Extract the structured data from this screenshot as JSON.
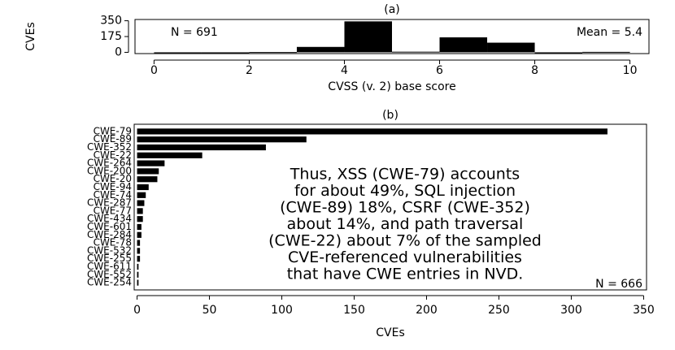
{
  "chart_data": [
    {
      "type": "histogram",
      "title": "(a)",
      "x_label": "CVSS (v. 2) base score",
      "y_label": "CVEs",
      "bins": [
        0,
        1,
        2,
        3,
        4,
        5,
        6,
        7,
        8,
        9,
        10
      ],
      "values": [
        0,
        0,
        3,
        60,
        343,
        7,
        166,
        107,
        0,
        5
      ],
      "color": "#000000",
      "xlim": [
        -0.4,
        10.4
      ],
      "xticks": [
        0,
        2,
        4,
        6,
        8,
        10
      ],
      "ylim": [
        -14,
        364
      ],
      "yticks": [
        0,
        175,
        350
      ],
      "annotations": [
        "N = 691",
        "Mean = 5.4"
      ]
    },
    {
      "type": "bar",
      "orientation": "horizontal",
      "title": "(b)",
      "x_label": "CVEs",
      "categories": [
        "CWE-79",
        "CWE-89",
        "CWE-352",
        "CWE-22",
        "CWE-264",
        "CWE-200",
        "CWE-20",
        "CWE-94",
        "CWE-74",
        "CWE-287",
        "CWE-77",
        "CWE-434",
        "CWE-601",
        "CWE-284",
        "CWE-78",
        "CWE-532",
        "CWE-255",
        "CWE-611",
        "CWE-552",
        "CWE-254"
      ],
      "values": [
        325,
        117,
        89,
        45,
        19,
        15,
        14,
        8,
        6,
        5,
        4,
        4,
        3,
        3,
        2,
        2,
        2,
        1,
        1,
        1
      ],
      "color": "#000000",
      "xlim": [
        -2,
        352
      ],
      "xticks": [
        0,
        50,
        100,
        150,
        200,
        250,
        300,
        350
      ],
      "annotation": [
        "Thus, XSS (CWE-79) accounts",
        "for about 49%, SQL injection",
        "(CWE-89) 18%, CSRF (CWE-352)",
        "about 14%, and path traversal",
        "(CWE-22) about 7% of the sampled",
        "CVE-referenced vulnerabilities",
        "that have CWE entries in NVD."
      ],
      "note": "N = 666"
    }
  ]
}
